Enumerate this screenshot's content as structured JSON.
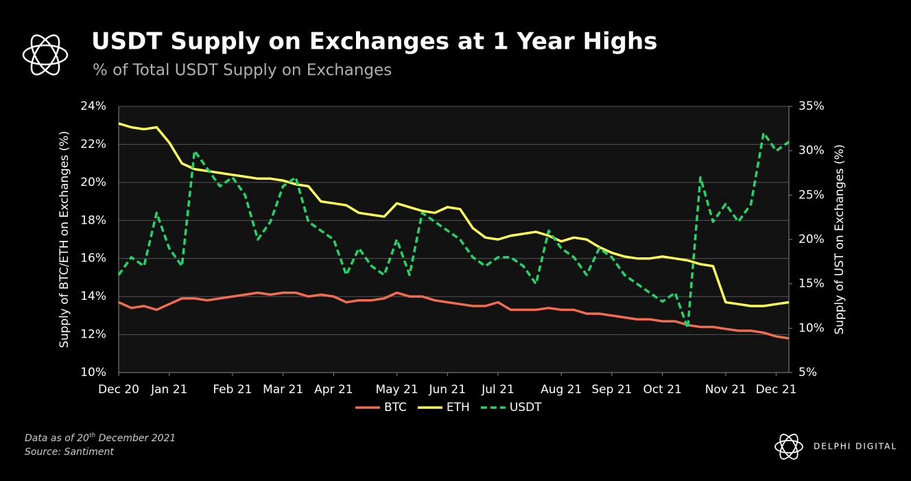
{
  "chart_data": {
    "type": "line",
    "title": "USDT Supply on Exchanges at 1 Year Highs",
    "subtitle": "% of Total USDT Supply on Exchanges",
    "y_label": "Supply of BTC/ETH on Exchanges (%)",
    "y2_label": "Supply of UST on Exchanges (%)",
    "note": [
      "Data as of 20",
      "th",
      " December 2021"
    ],
    "source": "Source: Santiment",
    "brand": "DELPHI DIGITAL",
    "grid": true,
    "categories": [
      "Dec 20",
      null,
      null,
      null,
      "Jan 21",
      null,
      null,
      null,
      null,
      "Feb 21",
      null,
      null,
      null,
      "Mar 21",
      null,
      null,
      null,
      "Apr 21",
      null,
      null,
      null,
      null,
      "May 21",
      null,
      null,
      null,
      "Jun 21",
      null,
      null,
      null,
      "Jul 21",
      null,
      null,
      null,
      null,
      "Aug 21",
      null,
      null,
      null,
      "Sep 21",
      null,
      null,
      null,
      "Oct 21",
      null,
      null,
      null,
      null,
      "Nov 21",
      null,
      null,
      null,
      "Dec 21",
      null
    ],
    "ylim": [
      10,
      24
    ],
    "yticks": [
      {
        "value": 10,
        "label": "10%"
      },
      {
        "value": 12,
        "label": "12%"
      },
      {
        "value": 14,
        "label": "14%"
      },
      {
        "value": 16,
        "label": "16%"
      },
      {
        "value": 18,
        "label": "18%"
      },
      {
        "value": 20,
        "label": "20%"
      },
      {
        "value": 22,
        "label": "22%"
      },
      {
        "value": 24,
        "label": "24%"
      }
    ],
    "y2lim": [
      5,
      35
    ],
    "y2ticks": [
      {
        "value": 5,
        "label": "5%"
      },
      {
        "value": 10,
        "label": "10%"
      },
      {
        "value": 15,
        "label": "15%"
      },
      {
        "value": 20,
        "label": "20%"
      },
      {
        "value": 25,
        "label": "25%"
      },
      {
        "value": 30,
        "label": "30%"
      },
      {
        "value": 35,
        "label": "35%"
      }
    ],
    "series": [
      {
        "name": "BTC",
        "color": "#f26d50",
        "dashed": false,
        "values": [
          13.7,
          13.4,
          13.5,
          13.3,
          13.6,
          13.9,
          13.9,
          13.8,
          13.9,
          14.0,
          14.1,
          14.2,
          14.1,
          14.2,
          14.2,
          14.0,
          14.1,
          14.0,
          13.7,
          13.8,
          13.8,
          13.9,
          14.2,
          14.0,
          14.0,
          13.8,
          13.7,
          13.6,
          13.5,
          13.5,
          13.7,
          13.3,
          13.3,
          13.3,
          13.4,
          13.3,
          13.3,
          13.1,
          13.1,
          13.0,
          12.9,
          12.8,
          12.8,
          12.7,
          12.7,
          12.5,
          12.4,
          12.4,
          12.3,
          12.2,
          12.2,
          12.1,
          11.9,
          11.8
        ]
      },
      {
        "name": "ETH",
        "color": "#ffff55",
        "dashed": false,
        "values": [
          23.1,
          22.9,
          22.8,
          22.9,
          22.1,
          21.0,
          20.7,
          20.6,
          20.5,
          20.4,
          20.3,
          20.2,
          20.2,
          20.1,
          19.9,
          19.8,
          19.0,
          18.9,
          18.8,
          18.4,
          18.3,
          18.2,
          18.9,
          18.7,
          18.5,
          18.4,
          18.7,
          18.6,
          17.6,
          17.1,
          17.0,
          17.2,
          17.3,
          17.4,
          17.2,
          16.9,
          17.1,
          17.0,
          16.6,
          16.3,
          16.1,
          16.0,
          16.0,
          16.1,
          16.0,
          15.9,
          15.7,
          15.6,
          13.7,
          13.6,
          13.5,
          13.5,
          13.6,
          13.7
        ]
      },
      {
        "name": "USDT",
        "color": "#22d46a",
        "dashed": true,
        "axis": "y2",
        "values": [
          16,
          18,
          17,
          23,
          19,
          17,
          30,
          28,
          26,
          27,
          25,
          20,
          22,
          26,
          27,
          22,
          21,
          20,
          16,
          19,
          17,
          16,
          20,
          16,
          23,
          22,
          21,
          20,
          18,
          17,
          18,
          18,
          17,
          15,
          21,
          19,
          18,
          16,
          19,
          18,
          16,
          15,
          14,
          13,
          14,
          10,
          27,
          22,
          24,
          22,
          24,
          32,
          30,
          31
        ]
      }
    ]
  }
}
